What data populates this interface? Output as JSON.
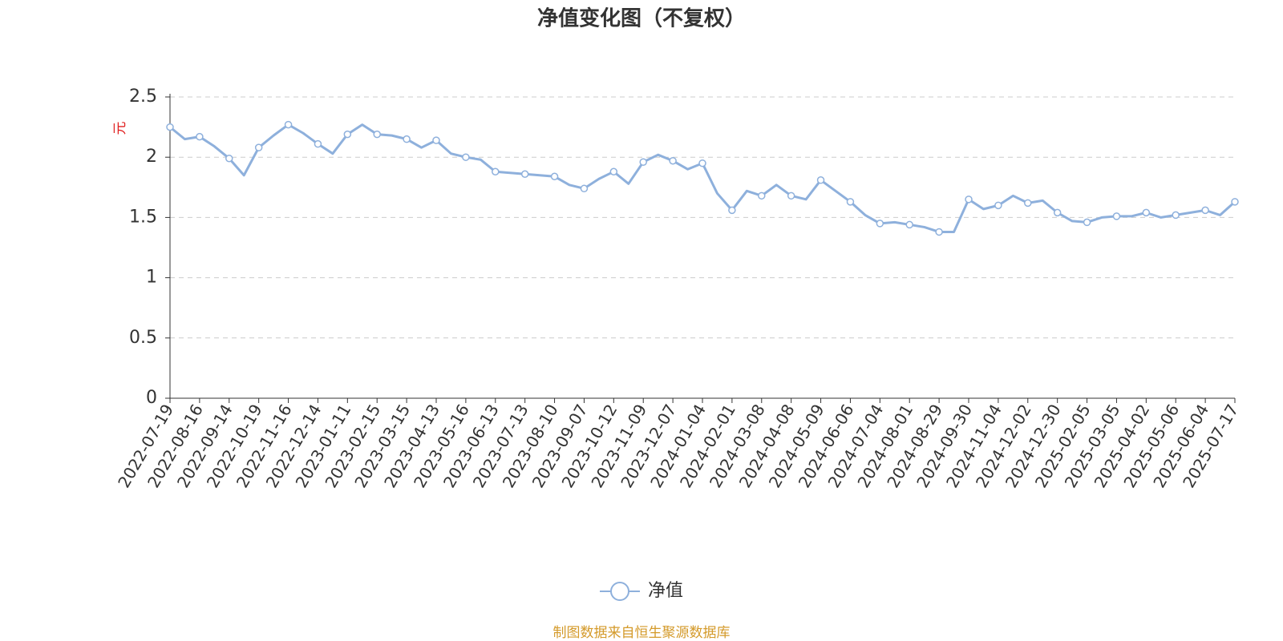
{
  "chart_data": {
    "type": "line",
    "title": "净值变化图（不复权）",
    "y_label": "元",
    "source": "制图数据来自恒生聚源数据库",
    "categories": [
      "2022-07-19",
      null,
      "2022-08-16",
      null,
      "2022-09-14",
      null,
      "2022-10-19",
      null,
      "2022-11-16",
      null,
      "2022-12-14",
      null,
      "2023-01-11",
      null,
      "2023-02-15",
      null,
      "2023-03-15",
      null,
      "2023-04-13",
      null,
      "2023-05-16",
      null,
      "2023-06-13",
      null,
      "2023-07-13",
      null,
      "2023-08-10",
      null,
      "2023-09-07",
      null,
      "2023-10-12",
      null,
      "2023-11-09",
      null,
      "2023-12-07",
      null,
      "2024-01-04",
      null,
      "2024-02-01",
      null,
      "2024-03-08",
      null,
      "2024-04-08",
      null,
      "2024-05-09",
      null,
      "2024-06-06",
      null,
      "2024-07-04",
      null,
      "2024-08-01",
      null,
      "2024-08-29",
      null,
      "2024-09-30",
      null,
      "2024-11-04",
      null,
      "2024-12-02",
      null,
      "2024-12-30",
      null,
      "2025-02-05",
      null,
      "2025-03-05",
      null,
      "2025-04-02",
      null,
      "2025-05-06",
      null,
      "2025-06-04",
      null,
      "2025-07-17"
    ],
    "series": [
      {
        "name": "净值",
        "color": "#8eb0dc",
        "values": [
          2.25,
          2.15,
          2.17,
          2.09,
          1.99,
          1.85,
          2.08,
          2.18,
          2.27,
          2.2,
          2.11,
          2.03,
          2.19,
          2.27,
          2.19,
          2.18,
          2.15,
          2.08,
          2.14,
          2.03,
          2.0,
          1.98,
          1.88,
          1.87,
          1.86,
          1.85,
          1.84,
          1.77,
          1.74,
          1.82,
          1.88,
          1.78,
          1.96,
          2.02,
          1.97,
          1.9,
          1.95,
          1.7,
          1.56,
          1.72,
          1.68,
          1.77,
          1.68,
          1.65,
          1.81,
          1.72,
          1.63,
          1.52,
          1.45,
          1.46,
          1.44,
          1.42,
          1.38,
          1.38,
          1.65,
          1.57,
          1.6,
          1.68,
          1.62,
          1.64,
          1.54,
          1.47,
          1.46,
          1.5,
          1.51,
          1.51,
          1.54,
          1.5,
          1.52,
          1.54,
          1.56,
          1.52,
          1.63
        ]
      }
    ],
    "ylim": [
      0,
      2.5
    ],
    "yticks": [
      0,
      0.5,
      1,
      1.5,
      2,
      2.5
    ],
    "grid": true
  }
}
